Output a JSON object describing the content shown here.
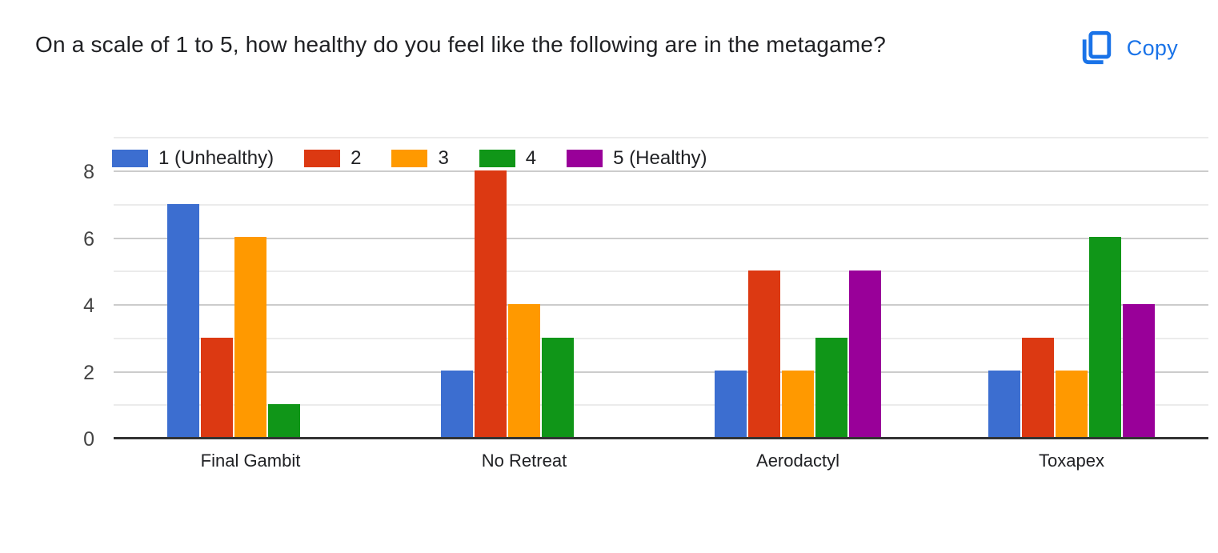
{
  "header": {
    "title": "On a scale of 1 to 5, how healthy do you feel like the following are in the metagame?",
    "copy_label": "Copy",
    "accent_color": "#1a73e8"
  },
  "chart_data": {
    "type": "bar",
    "title": "On a scale of 1 to 5, how healthy do you feel like the following are in the metagame?",
    "categories": [
      "Final Gambit",
      "No Retreat",
      "Aerodactyl",
      "Toxapex"
    ],
    "series": [
      {
        "name": "1 (Unhealthy)",
        "color": "#3c6ed0",
        "values": [
          7,
          2,
          2,
          2
        ]
      },
      {
        "name": "2",
        "color": "#dc3912",
        "values": [
          3,
          8,
          5,
          3
        ]
      },
      {
        "name": "3",
        "color": "#ff9900",
        "values": [
          6,
          4,
          2,
          2
        ]
      },
      {
        "name": "4",
        "color": "#109618",
        "values": [
          1,
          3,
          3,
          6
        ]
      },
      {
        "name": "5 (Healthy)",
        "color": "#990099",
        "values": [
          0,
          0,
          5,
          4
        ]
      }
    ],
    "yticks": [
      0,
      2,
      4,
      6,
      8
    ],
    "ylim": [
      0,
      9
    ],
    "xlabel": "",
    "ylabel": "",
    "grid": true,
    "legend_position": "top",
    "colors": {
      "major_gridline": "#cccccc",
      "minor_gridline": "#ebebeb",
      "axis_line": "#333333"
    }
  }
}
